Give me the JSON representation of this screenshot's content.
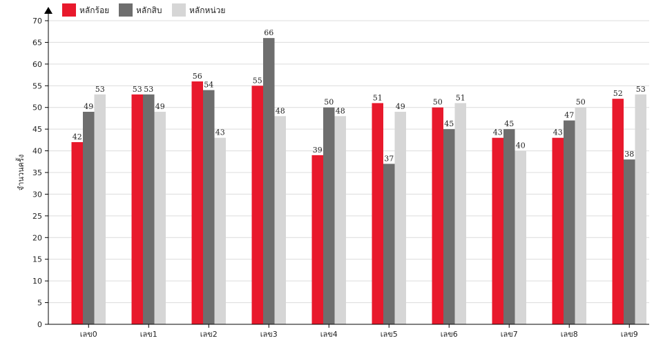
{
  "chart_data": {
    "type": "bar",
    "ylabel": "จำนวนครั้ง",
    "ylim": [
      0,
      70
    ],
    "ytick_step": 5,
    "grid": true,
    "legend_position": "top-left",
    "categories": [
      "เลข0",
      "เลข1",
      "เลข2",
      "เลข3",
      "เลข4",
      "เลข5",
      "เลข6",
      "เลข7",
      "เลข8",
      "เลข9"
    ],
    "series": [
      {
        "name": "หลักร้อย",
        "color": "#e8192c",
        "values": [
          42,
          53,
          56,
          55,
          39,
          51,
          50,
          43,
          43,
          52
        ]
      },
      {
        "name": "หลักสิบ",
        "color": "#6e6e6e",
        "values": [
          49,
          53,
          54,
          66,
          50,
          37,
          45,
          45,
          47,
          38
        ]
      },
      {
        "name": "หลักหน่วย",
        "color": "#d6d6d6",
        "values": [
          53,
          49,
          43,
          48,
          48,
          49,
          51,
          40,
          50,
          53
        ]
      }
    ]
  }
}
